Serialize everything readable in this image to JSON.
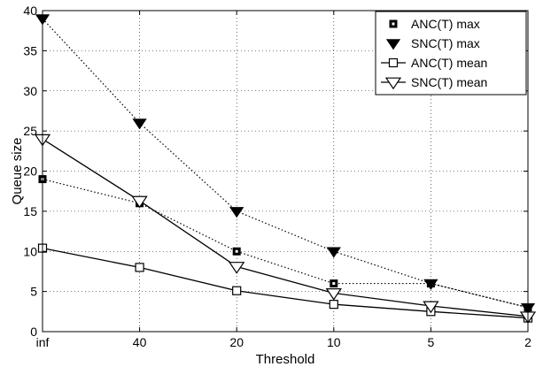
{
  "chart_data": {
    "type": "line",
    "x_categories": [
      "inf",
      "40",
      "20",
      "10",
      "5",
      "2"
    ],
    "xlabel": "Threshold",
    "ylabel": "Queue size",
    "ylim": [
      0,
      40
    ],
    "yticks": [
      0,
      5,
      10,
      15,
      20,
      25,
      30,
      35,
      40
    ],
    "grid": true,
    "legend_position": "top-right",
    "series": [
      {
        "name": "ANC(T) max",
        "marker": "square-filled",
        "line": "dotted",
        "values": [
          19,
          16,
          10,
          6,
          6,
          3
        ]
      },
      {
        "name": "SNC(T) max",
        "marker": "triangle-down-filled",
        "line": "dotted",
        "values": [
          39,
          26,
          15,
          10,
          6,
          3
        ]
      },
      {
        "name": "ANC(T) mean",
        "marker": "square-open",
        "line": "solid",
        "values": [
          10.4,
          8,
          5.1,
          3.4,
          2.5,
          1.7
        ]
      },
      {
        "name": "SNC(T) mean",
        "marker": "triangle-down-open",
        "line": "solid",
        "values": [
          24,
          16.3,
          8.1,
          4.8,
          3.2,
          1.9
        ]
      }
    ]
  }
}
